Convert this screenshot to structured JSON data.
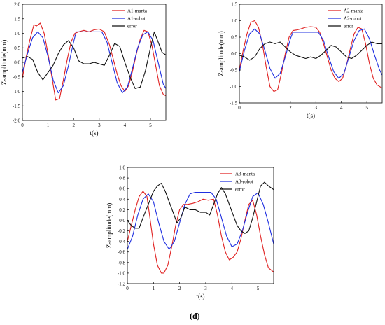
{
  "caption": "(d)",
  "chart_data": [
    {
      "type": "line",
      "xlabel": "t(s)",
      "ylabel": "Z-amplitude(mm)",
      "xlim": [
        0,
        5.6
      ],
      "ylim": [
        -2.0,
        2.0
      ],
      "xticks": [
        0,
        1,
        2,
        3,
        4,
        5
      ],
      "yticks": [
        -2.0,
        -1.5,
        -1.0,
        -0.5,
        0.0,
        0.5,
        1.0,
        1.5,
        2.0
      ],
      "legend_position": "top-right",
      "series": [
        {
          "name": "A1-manta",
          "color": "#e02020",
          "x": [
            0.0,
            0.15,
            0.3,
            0.45,
            0.55,
            0.7,
            0.85,
            1.0,
            1.15,
            1.3,
            1.45,
            1.6,
            1.75,
            1.9,
            2.05,
            2.2,
            2.4,
            2.6,
            2.8,
            3.0,
            3.2,
            3.4,
            3.55,
            3.7,
            3.85,
            4.0,
            4.15,
            4.3,
            4.45,
            4.6,
            4.75,
            4.9,
            5.05,
            5.2,
            5.35,
            5.5,
            5.6
          ],
          "y": [
            -0.55,
            0.2,
            0.8,
            1.3,
            1.25,
            1.35,
            1.0,
            0.3,
            -0.5,
            -1.3,
            -1.25,
            -0.6,
            0.1,
            0.7,
            1.0,
            1.05,
            1.1,
            1.05,
            1.12,
            1.15,
            1.05,
            0.6,
            0.1,
            -0.4,
            -0.8,
            -1.0,
            -0.8,
            -0.3,
            0.3,
            0.8,
            1.1,
            1.05,
            0.6,
            -0.1,
            -0.8,
            -1.1,
            -1.15
          ]
        },
        {
          "name": "A1-robot",
          "color": "#2030e0",
          "x": [
            0.0,
            0.2,
            0.4,
            0.6,
            0.8,
            1.0,
            1.2,
            1.4,
            1.6,
            1.8,
            2.0,
            2.1,
            2.3,
            2.5,
            2.7,
            2.9,
            3.1,
            3.3,
            3.5,
            3.7,
            3.9,
            4.1,
            4.3,
            4.5,
            4.7,
            4.9,
            5.1,
            5.3,
            5.5,
            5.6
          ],
          "y": [
            -0.35,
            0.3,
            0.85,
            1.05,
            0.85,
            0.2,
            -0.6,
            -1.05,
            -0.8,
            -0.1,
            0.7,
            1.05,
            1.05,
            1.05,
            1.05,
            1.05,
            1.05,
            0.7,
            0.0,
            -0.7,
            -1.05,
            -0.85,
            -0.2,
            0.5,
            0.95,
            1.05,
            0.75,
            0.0,
            -0.75,
            -0.9
          ]
        },
        {
          "name": "error",
          "color": "#111111",
          "x": [
            0.0,
            0.2,
            0.4,
            0.6,
            0.8,
            1.0,
            1.2,
            1.4,
            1.6,
            1.8,
            2.0,
            2.2,
            2.4,
            2.6,
            2.8,
            3.0,
            3.2,
            3.4,
            3.6,
            3.8,
            4.0,
            4.2,
            4.4,
            4.6,
            4.8,
            5.0,
            5.15,
            5.3,
            5.45,
            5.6
          ],
          "y": [
            0.15,
            0.2,
            0.1,
            -0.35,
            -0.6,
            -0.35,
            -0.1,
            0.3,
            0.6,
            0.75,
            0.5,
            0.05,
            -0.05,
            -0.05,
            0.0,
            -0.05,
            -0.1,
            0.25,
            0.65,
            0.55,
            0.0,
            -0.5,
            -0.9,
            -0.85,
            -0.3,
            0.5,
            1.05,
            0.7,
            0.35,
            0.25
          ]
        }
      ]
    },
    {
      "type": "line",
      "xlabel": "t(s)",
      "ylabel": "Z-amplitude(mm)",
      "xlim": [
        0,
        5.6
      ],
      "ylim": [
        -1.5,
        1.5
      ],
      "xticks": [
        0,
        1,
        2,
        3,
        4,
        5
      ],
      "yticks": [
        -1.5,
        -1.0,
        -0.5,
        0.0,
        0.5,
        1.0,
        1.5
      ],
      "legend_position": "top-right",
      "series": [
        {
          "name": "A2-manta",
          "color": "#e02020",
          "x": [
            0.0,
            0.15,
            0.3,
            0.45,
            0.6,
            0.75,
            0.9,
            1.05,
            1.2,
            1.35,
            1.5,
            1.65,
            1.8,
            1.95,
            2.1,
            2.25,
            2.4,
            2.6,
            2.8,
            3.0,
            3.15,
            3.3,
            3.45,
            3.6,
            3.75,
            3.9,
            4.05,
            4.2,
            4.35,
            4.5,
            4.65,
            4.8,
            4.95,
            5.1,
            5.25,
            5.4,
            5.6
          ],
          "y": [
            -0.5,
            0.1,
            0.6,
            0.95,
            1.0,
            0.8,
            0.3,
            -0.4,
            -1.0,
            -1.15,
            -1.1,
            -0.6,
            0.0,
            0.5,
            0.7,
            0.72,
            0.75,
            0.8,
            0.82,
            0.8,
            0.65,
            0.3,
            -0.1,
            -0.5,
            -0.75,
            -0.85,
            -0.75,
            -0.35,
            0.15,
            0.6,
            0.8,
            0.75,
            0.3,
            -0.3,
            -0.75,
            -0.95,
            -1.05
          ]
        },
        {
          "name": "A2-robot",
          "color": "#2030e0",
          "x": [
            0.0,
            0.2,
            0.4,
            0.6,
            0.8,
            1.0,
            1.2,
            1.4,
            1.6,
            1.8,
            2.0,
            2.1,
            2.3,
            2.5,
            2.7,
            2.9,
            3.1,
            3.3,
            3.5,
            3.7,
            3.9,
            4.1,
            4.3,
            4.5,
            4.7,
            4.9,
            5.1,
            5.3,
            5.5,
            5.6
          ],
          "y": [
            -0.55,
            0.1,
            0.6,
            0.75,
            0.6,
            0.1,
            -0.45,
            -0.75,
            -0.6,
            -0.1,
            0.45,
            0.65,
            0.65,
            0.65,
            0.65,
            0.65,
            0.65,
            0.4,
            -0.1,
            -0.55,
            -0.75,
            -0.6,
            -0.1,
            0.4,
            0.7,
            0.75,
            0.45,
            -0.05,
            -0.5,
            -0.65
          ]
        },
        {
          "name": "error",
          "color": "#111111",
          "x": [
            0.0,
            0.2,
            0.4,
            0.6,
            0.8,
            1.0,
            1.2,
            1.4,
            1.6,
            1.8,
            2.0,
            2.2,
            2.4,
            2.6,
            2.8,
            3.0,
            3.2,
            3.4,
            3.6,
            3.8,
            4.0,
            4.2,
            4.4,
            4.6,
            4.8,
            5.0,
            5.2,
            5.4,
            5.6
          ],
          "y": [
            -0.05,
            -0.1,
            -0.2,
            -0.1,
            0.15,
            0.3,
            0.35,
            0.3,
            0.35,
            0.2,
            0.05,
            -0.05,
            -0.1,
            -0.15,
            -0.1,
            -0.15,
            -0.05,
            0.1,
            0.25,
            0.2,
            0.05,
            -0.1,
            -0.15,
            -0.05,
            0.1,
            0.25,
            0.35,
            0.3,
            0.3
          ]
        }
      ]
    },
    {
      "type": "line",
      "xlabel": "t(s)",
      "ylabel": "Z-amplitude(mm)",
      "xlim": [
        0,
        5.6
      ],
      "ylim": [
        -1.2,
        1.0
      ],
      "xticks": [
        0,
        1,
        2,
        3,
        4,
        5
      ],
      "yticks": [
        -1.2,
        -1.0,
        -0.8,
        -0.6,
        -0.4,
        -0.2,
        0.0,
        0.2,
        0.4,
        0.6,
        0.8,
        1.0
      ],
      "legend_position": "top-right",
      "series": [
        {
          "name": "A3-manta",
          "color": "#e02020",
          "x": [
            0.0,
            0.15,
            0.3,
            0.45,
            0.6,
            0.75,
            0.85,
            1.0,
            1.15,
            1.3,
            1.4,
            1.55,
            1.7,
            1.85,
            2.0,
            2.15,
            2.3,
            2.5,
            2.7,
            2.9,
            3.1,
            3.3,
            3.45,
            3.6,
            3.75,
            3.9,
            4.05,
            4.2,
            4.35,
            4.5,
            4.65,
            4.8,
            4.95,
            5.1,
            5.25,
            5.4,
            5.6
          ],
          "y": [
            -0.4,
            -0.1,
            0.2,
            0.45,
            0.55,
            0.45,
            0.1,
            -0.45,
            -0.85,
            -1.0,
            -1.0,
            -0.85,
            -0.5,
            -0.1,
            0.2,
            0.3,
            0.3,
            0.32,
            0.35,
            0.4,
            0.38,
            0.4,
            0.1,
            -0.3,
            -0.6,
            -0.75,
            -0.7,
            -0.6,
            -0.35,
            0.0,
            0.3,
            0.38,
            0.1,
            -0.3,
            -0.65,
            -0.9,
            -0.98
          ]
        },
        {
          "name": "A3-robot",
          "color": "#2030e0",
          "x": [
            0.0,
            0.2,
            0.4,
            0.6,
            0.8,
            1.0,
            1.2,
            1.4,
            1.6,
            1.8,
            2.0,
            2.2,
            2.4,
            2.6,
            2.8,
            3.0,
            3.2,
            3.4,
            3.6,
            3.8,
            4.0,
            4.2,
            4.4,
            4.6,
            4.8,
            5.0,
            5.2,
            5.4,
            5.6
          ],
          "y": [
            -0.55,
            -0.3,
            0.1,
            0.4,
            0.5,
            0.35,
            -0.05,
            -0.4,
            -0.55,
            -0.4,
            -0.05,
            0.3,
            0.5,
            0.53,
            0.53,
            0.53,
            0.53,
            0.4,
            0.05,
            -0.3,
            -0.5,
            -0.45,
            -0.2,
            0.15,
            0.45,
            0.52,
            0.3,
            -0.05,
            -0.45
          ]
        },
        {
          "name": "error",
          "color": "#111111",
          "x": [
            0.0,
            0.15,
            0.3,
            0.45,
            0.6,
            0.8,
            1.0,
            1.15,
            1.3,
            1.45,
            1.6,
            1.75,
            1.9,
            2.05,
            2.2,
            2.4,
            2.6,
            2.8,
            3.0,
            3.15,
            3.3,
            3.45,
            3.6,
            3.75,
            3.9,
            4.05,
            4.2,
            4.35,
            4.5,
            4.65,
            4.8,
            4.95,
            5.1,
            5.25,
            5.4,
            5.6
          ],
          "y": [
            0.0,
            -0.1,
            -0.15,
            -0.15,
            0.05,
            0.3,
            0.55,
            0.65,
            0.7,
            0.55,
            0.35,
            0.15,
            -0.05,
            0.05,
            0.25,
            0.2,
            0.2,
            0.15,
            0.15,
            0.1,
            0.3,
            0.5,
            0.62,
            0.5,
            0.3,
            0.1,
            -0.1,
            -0.2,
            -0.25,
            -0.2,
            0.05,
            0.35,
            0.65,
            0.72,
            0.65,
            0.58
          ]
        }
      ]
    }
  ]
}
